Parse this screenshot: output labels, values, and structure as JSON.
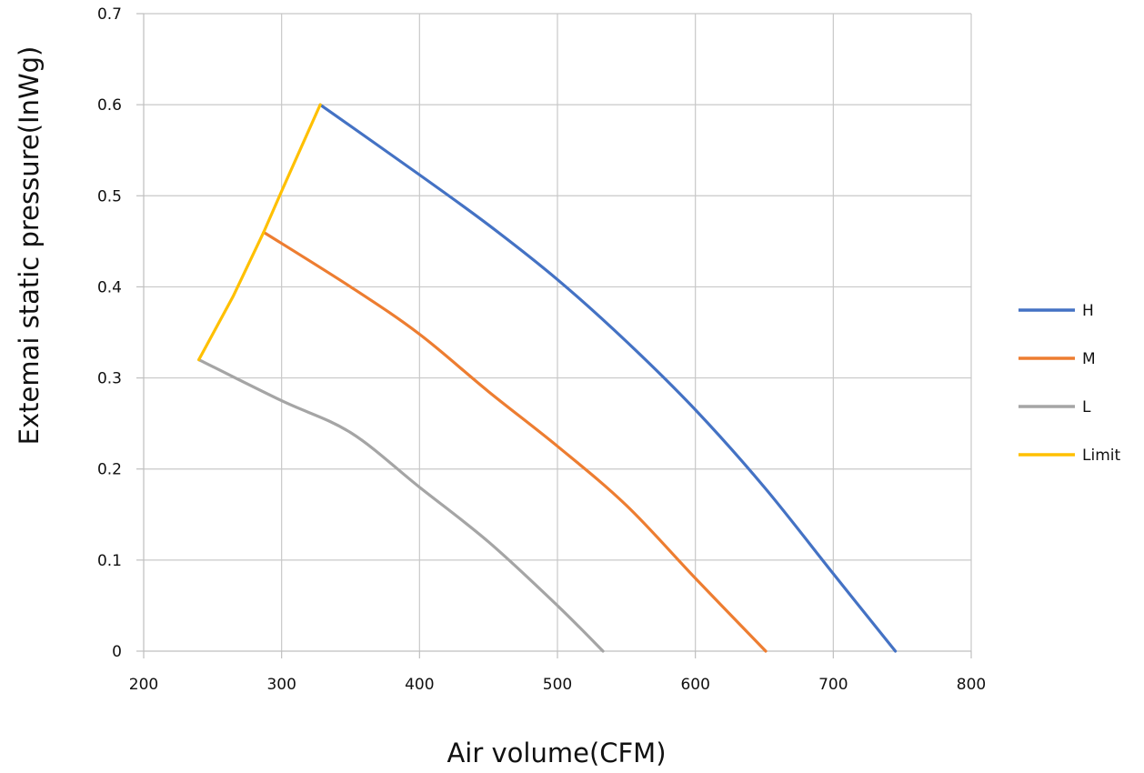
{
  "chart_data": {
    "type": "line",
    "title": "",
    "xlabel": "Air volume(CFM)",
    "ylabel": "Extemai static pressure(InWg)",
    "xlim": [
      200,
      800
    ],
    "ylim": [
      0,
      0.7
    ],
    "x_ticks": [
      200,
      300,
      400,
      500,
      600,
      700,
      800
    ],
    "y_ticks": [
      0,
      0.1,
      0.2,
      0.3,
      0.4,
      0.5,
      0.6,
      0.7
    ],
    "x_tick_labels": [
      "200",
      "300",
      "400",
      "500",
      "600",
      "700",
      "800"
    ],
    "y_tick_labels": [
      "0",
      "0.1",
      "0.2",
      "0.3",
      "0.4",
      "0.5",
      "0.6",
      "0.7"
    ],
    "grid": true,
    "legend_position": "right",
    "series": [
      {
        "name": "H",
        "color": "#4472c4",
        "points": [
          [
            328,
            0.6
          ],
          [
            400,
            0.523
          ],
          [
            450,
            0.468
          ],
          [
            500,
            0.408
          ],
          [
            550,
            0.34
          ],
          [
            600,
            0.265
          ],
          [
            650,
            0.18
          ],
          [
            700,
            0.085
          ],
          [
            745,
            0
          ]
        ]
      },
      {
        "name": "M",
        "color": "#ed7d31",
        "points": [
          [
            287,
            0.46
          ],
          [
            350,
            0.4
          ],
          [
            400,
            0.348
          ],
          [
            450,
            0.285
          ],
          [
            500,
            0.225
          ],
          [
            550,
            0.16
          ],
          [
            600,
            0.08
          ],
          [
            651,
            0
          ]
        ]
      },
      {
        "name": "L",
        "color": "#a5a5a5",
        "points": [
          [
            240,
            0.32
          ],
          [
            300,
            0.275
          ],
          [
            350,
            0.24
          ],
          [
            400,
            0.18
          ],
          [
            450,
            0.12
          ],
          [
            500,
            0.05
          ],
          [
            533,
            0
          ]
        ]
      },
      {
        "name": "Limit",
        "color": "#ffc000",
        "points": [
          [
            240,
            0.32
          ],
          [
            265,
            0.39
          ],
          [
            287,
            0.46
          ],
          [
            300,
            0.505
          ],
          [
            328,
            0.6
          ]
        ]
      }
    ]
  }
}
